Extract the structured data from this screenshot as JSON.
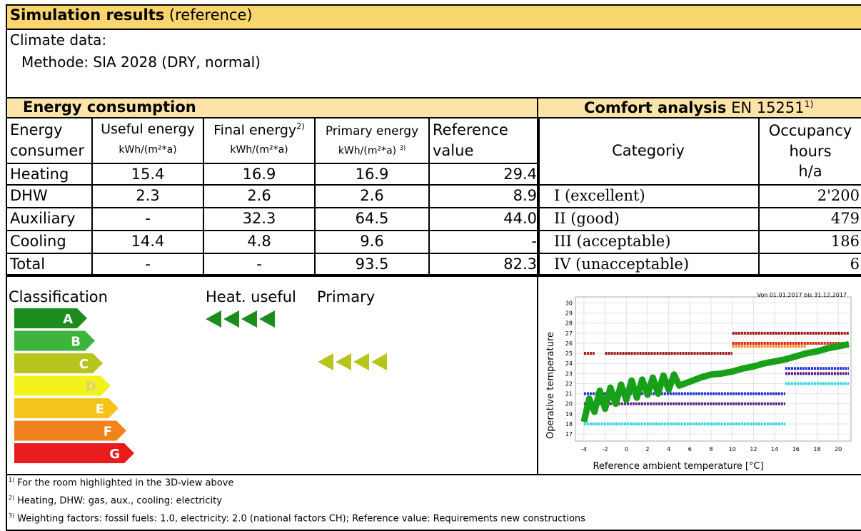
{
  "header": {
    "title": "Simulation results",
    "title_note": "(reference)",
    "climate_label": "Climate data:",
    "method": "Methode: SIA 2028 (DRY, normal)"
  },
  "energy_table": {
    "title": "Energy consumption",
    "headers": [
      {
        "label": "Energy consumer"
      },
      {
        "label": "Useful energy",
        "unit": "kWh/(m²*a)"
      },
      {
        "label": "Final energy",
        "note": "2)",
        "unit": "kWh/(m²*a)"
      },
      {
        "label": "Primary energy",
        "unit": "kWh/(m²*a)",
        "note": "3)"
      },
      {
        "label": "Reference value"
      }
    ],
    "rows": [
      [
        "Heating",
        "15.4",
        "16.9",
        "16.9",
        "29.4"
      ],
      [
        "DHW",
        "2.3",
        "2.6",
        "2.6",
        "8.9"
      ],
      [
        "Auxiliary",
        "-",
        "32.3",
        "64.5",
        "44.0"
      ],
      [
        "Cooling",
        "14.4",
        "4.8",
        "9.6",
        "-"
      ],
      [
        "Total",
        "-",
        "-",
        "93.5",
        "82.3"
      ]
    ]
  },
  "comfort_table": {
    "title": "Comfort analysis",
    "title_norm": "EN 15251",
    "title_note": "1)",
    "headers": [
      "Categoriy",
      "Occupancy hours",
      "h/a"
    ],
    "rows": [
      [
        "I (excellent)",
        "2'200"
      ],
      [
        "II (good)",
        "479"
      ],
      [
        "III (acceptable)",
        "186"
      ],
      [
        "IV (unacceptable)",
        "6"
      ]
    ]
  },
  "classification": {
    "title": "Classification",
    "heat_label": "Heat. useful",
    "primary_label": "Primary",
    "classes": [
      {
        "label": "A",
        "color": "#1c8c1c"
      },
      {
        "label": "B",
        "color": "#3db53d"
      },
      {
        "label": "C",
        "color": "#b8c41e"
      },
      {
        "label": "D",
        "color": "#f4f21c"
      },
      {
        "label": "E",
        "color": "#f6c21c"
      },
      {
        "label": "F",
        "color": "#f2821c"
      },
      {
        "label": "G",
        "color": "#e81c1c"
      }
    ],
    "heat_class": "A",
    "primary_class": "C"
  },
  "comfort_chart": {
    "type": "scatter",
    "period": "Von 01.01.2017 bis 31.12.2017",
    "ylabel": "Operative temperature",
    "xlabel": "Reference ambient temperature [°C]",
    "xlim": [
      -4.8,
      21.2
    ],
    "ylim": [
      16.3,
      30.6
    ],
    "xticks": [
      -4,
      -2,
      0,
      2,
      4,
      6,
      8,
      10,
      12,
      14,
      16,
      18,
      20
    ],
    "yticks": [
      17,
      18,
      19,
      20,
      21,
      22,
      23,
      24,
      25,
      26,
      27,
      28,
      29,
      30
    ],
    "bands": [
      {
        "color": "#a01010",
        "y": 25,
        "x": [
          -4,
          -3
        ]
      },
      {
        "color": "#a01010",
        "y": 25,
        "x": [
          -2,
          10
        ]
      },
      {
        "color": "#a01010",
        "y": 27,
        "x": [
          10,
          21
        ]
      },
      {
        "color": "#e02010",
        "y": 26,
        "x": [
          10,
          21
        ]
      },
      {
        "color": "#f09020",
        "y": 25.7,
        "x": [
          10,
          17
        ]
      },
      {
        "color": "#2030d0",
        "y": 21,
        "x": [
          -4,
          15
        ]
      },
      {
        "color": "#602080",
        "y": 20,
        "x": [
          -4,
          15
        ]
      },
      {
        "color": "#30d8e0",
        "y": 18,
        "x": [
          -4,
          15
        ]
      },
      {
        "color": "#2030d0",
        "y": 23.5,
        "x": [
          15,
          21
        ]
      },
      {
        "color": "#602080",
        "y": 23,
        "x": [
          15,
          21
        ]
      },
      {
        "color": "#30d8e0",
        "y": 22,
        "x": [
          15,
          21
        ]
      }
    ],
    "operative": {
      "color": "#18a018",
      "x": [
        -4,
        -3.5,
        -3,
        -2.5,
        -2,
        -1.5,
        -1,
        -0.5,
        0,
        0.5,
        1,
        1.5,
        2,
        2.5,
        3,
        3.5,
        4,
        4.5,
        5,
        6,
        7,
        8,
        9,
        10,
        11,
        12,
        13,
        14,
        15,
        16,
        17,
        18,
        19,
        20,
        21
      ],
      "y": [
        18.2,
        20.5,
        19.2,
        21.3,
        19.5,
        21.6,
        20.0,
        21.9,
        20.4,
        22.3,
        20.6,
        22.4,
        20.9,
        22.6,
        21.0,
        22.8,
        21.4,
        22.9,
        21.8,
        22.2,
        22.6,
        22.9,
        23.0,
        23.2,
        23.5,
        23.7,
        24.0,
        24.2,
        24.4,
        24.7,
        25.0,
        25.2,
        25.5,
        25.7,
        25.9
      ]
    }
  },
  "footnotes": [
    {
      "mark": "1)",
      "text": "For the room highlighted in the 3D-view above"
    },
    {
      "mark": "2)",
      "text": "Heating, DHW: gas, aux., cooling: electricity"
    },
    {
      "mark": "3)",
      "text": "Weighting factors: fossil fuels: 1.0, electricity: 2.0 (national factors CH); Reference value: Requirements new constructions"
    }
  ]
}
